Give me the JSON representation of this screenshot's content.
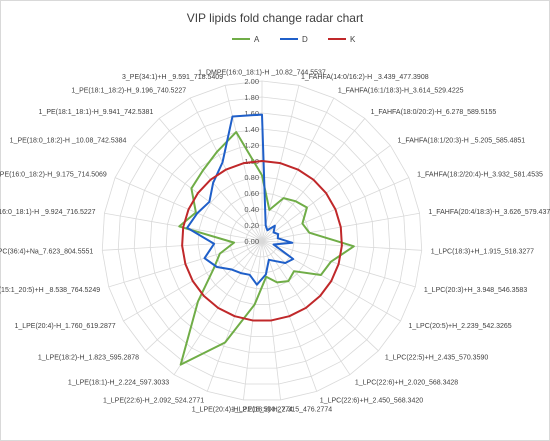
{
  "chart_data": {
    "type": "radar",
    "title": "VIP lipids fold change radar chart",
    "legend_position": "top",
    "grid": true,
    "r_range": [
      0,
      2.0
    ],
    "r_ticks": [
      "0.00",
      "0.20",
      "0.40",
      "0.60",
      "0.80",
      "1.00",
      "1.20",
      "1.40",
      "1.60",
      "1.80",
      "2.00"
    ],
    "categories": [
      "1_DMPE(16:0_18:1)-H _10.82_744.5537",
      "1_FAHFA(14:0/16:2)-H _3.439_477.3908",
      "1_FAHFA(16:1/18:3)-H_3.614_529.4225",
      "1_FAHFA(18:0/20:2)-H_6.278_589.5155",
      "1_FAHFA(18:1/20:3)-H _5.205_585.4851",
      "1_FAHFA(18:2/20:4)-H_3.932_581.4535",
      "1_FAHFA(20:4/18:3)-H_3.626_579.4376",
      "1_LPC(18:3)+H_1.915_518.3277",
      "1_LPC(20:3)+H_3.948_546.3583",
      "1_LPC(20:5)+H_2.239_542.3265",
      "1_LPC(22:5)+H_2.435_570.3590",
      "1_LPC(22:6)+H_2.020_568.3428",
      "1_LPC(22:6)+H_2.450_568.3420",
      "1_LPE(18:2)-H_2.315_476.2774",
      "1_LPE(20:4)-H_2.218_500.2774",
      "1_LPE(22:6)-H_2.092_524.2771",
      "1_LPE(18:1)-H_2.224_597.3033",
      "1_LPE(18:2)-H_1.823_595.2878",
      "1_LPE(20:4)-H_1.760_619.2877",
      "1_PC(15:1_20:5)+H _8.538_764.5249",
      "3_PC(36:4)+Na_7.623_804.5551",
      "1_PE(16:0_18:1)-H _9.924_716.5227",
      "1_PE(16:0_18:2)-H_9.175_714.5069",
      "1_PE(18:0_18:2)-H _10.08_742.5384",
      "1_PE(18:1_18:1)-H_9.941_742.5381",
      "1_PE(18:1_18:2)-H_9.196_740.5227",
      "3_PE(34:1)+H _9.591_718.5409"
    ],
    "series": [
      {
        "name": "A",
        "color": "#70ad47",
        "values": [
          0.82,
          0.4,
          0.6,
          0.65,
          0.7,
          0.55,
          0.6,
          1.15,
          0.9,
          0.85,
          0.55,
          0.6,
          0.55,
          0.45,
          0.8,
          1.35,
          1.85,
          1.1,
          0.7,
          0.55,
          0.35,
          1.05,
          0.9,
          1.1,
          1.15,
          1.25,
          1.4
        ]
      },
      {
        "name": "D",
        "color": "#1f5fc9",
        "values": [
          1.58,
          0.2,
          0.15,
          0.25,
          0.18,
          0.22,
          0.2,
          0.38,
          0.15,
          0.45,
          0.4,
          0.3,
          0.25,
          0.42,
          0.55,
          0.45,
          0.48,
          0.52,
          0.65,
          0.75,
          0.6,
          0.95,
          0.88,
          0.82,
          0.95,
          1.1,
          1.6
        ]
      },
      {
        "name": "K",
        "color": "#c0282a",
        "values": [
          1,
          1,
          1,
          1,
          1,
          1,
          1,
          1,
          1,
          1,
          1,
          1,
          1,
          1,
          1,
          1,
          1,
          1,
          1,
          1,
          1,
          1,
          1,
          1,
          1,
          1,
          1
        ]
      }
    ]
  }
}
